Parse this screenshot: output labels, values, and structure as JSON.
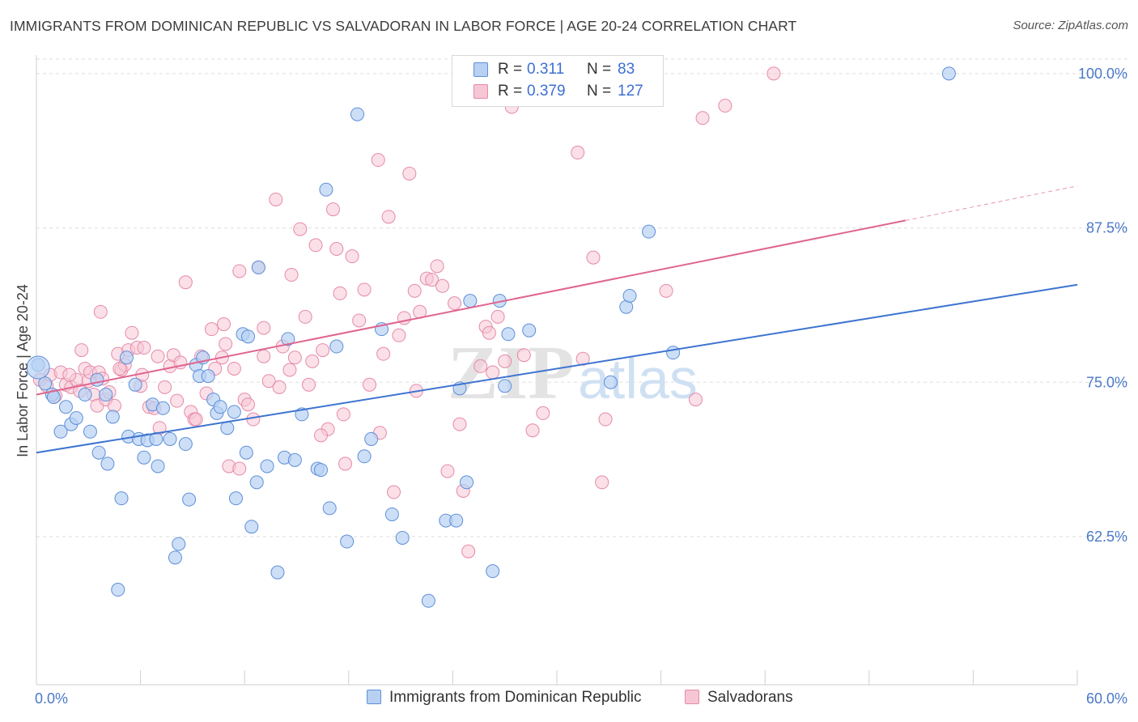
{
  "title": "IMMIGRANTS FROM DOMINICAN REPUBLIC VS SALVADORAN IN LABOR FORCE | AGE 20-24 CORRELATION CHART",
  "source": "Source: ZipAtlas.com",
  "watermark": "ZIPatlas",
  "legend": {
    "rows": [
      {
        "r_label": "R =",
        "r_value": "0.311",
        "n_label": "N =",
        "n_value": "83"
      },
      {
        "r_label": "R =",
        "r_value": "0.379",
        "n_label": "N =",
        "n_value": "127"
      }
    ]
  },
  "bottom_legend": [
    "Immigrants from Dominican Republic",
    "Salvadorans"
  ],
  "colors": {
    "blue_fill": "#b8d1f3",
    "blue_stroke": "#5d8fd8",
    "blue_line": "#3d74d0",
    "pink_fill": "#f7c6d5",
    "pink_stroke": "#e58aa8",
    "pink_line": "#e0658f",
    "grid": "#dddddd",
    "tick_text": "#4a78c8"
  },
  "chart_data": {
    "type": "scatter",
    "title": "IMMIGRANTS FROM DOMINICAN REPUBLIC VS SALVADORAN IN LABOR FORCE | AGE 20-24 CORRELATION CHART",
    "xlabel": "",
    "ylabel": "In Labor Force | Age 20-24",
    "xlim": [
      0,
      60
    ],
    "ylim": [
      50.5,
      101.5
    ],
    "x_tick_labels": [
      "0.0%",
      "60.0%"
    ],
    "y_ticks": [
      62.5,
      75.0,
      87.5,
      100.0
    ],
    "y_tick_labels": [
      "62.5%",
      "75.0%",
      "87.5%",
      "100.0%"
    ],
    "grid": "horizontal dashed",
    "legend_position": "top-center",
    "series": [
      {
        "name": "Immigrants from Dominican Republic",
        "R": 0.311,
        "N": 83,
        "trend": {
          "x": [
            0,
            60
          ],
          "y": [
            69.3,
            82.9
          ]
        },
        "points": [
          [
            0.1,
            76.4
          ],
          [
            0.5,
            74.9
          ],
          [
            0.9,
            74.0
          ],
          [
            1.4,
            71.0
          ],
          [
            1.7,
            73.0
          ],
          [
            2.0,
            71.6
          ],
          [
            2.3,
            72.1
          ],
          [
            2.8,
            74.0
          ],
          [
            3.1,
            71.0
          ],
          [
            3.5,
            75.2
          ],
          [
            3.6,
            69.3
          ],
          [
            4.0,
            74.0
          ],
          [
            4.1,
            68.4
          ],
          [
            4.4,
            72.2
          ],
          [
            4.7,
            58.2
          ],
          [
            4.9,
            65.6
          ],
          [
            5.2,
            77.0
          ],
          [
            5.3,
            70.6
          ],
          [
            5.7,
            74.8
          ],
          [
            5.9,
            70.4
          ],
          [
            6.2,
            68.9
          ],
          [
            6.4,
            70.3
          ],
          [
            6.7,
            73.2
          ],
          [
            7.0,
            68.2
          ],
          [
            7.3,
            72.9
          ],
          [
            7.7,
            70.4
          ],
          [
            8.0,
            60.8
          ],
          [
            8.2,
            61.9
          ],
          [
            8.6,
            70.0
          ],
          [
            8.8,
            65.5
          ],
          [
            9.2,
            76.4
          ],
          [
            9.4,
            75.5
          ],
          [
            9.6,
            77.0
          ],
          [
            9.9,
            75.5
          ],
          [
            10.2,
            73.6
          ],
          [
            10.4,
            72.5
          ],
          [
            10.6,
            73.0
          ],
          [
            11.0,
            71.3
          ],
          [
            11.4,
            72.6
          ],
          [
            11.5,
            65.6
          ],
          [
            11.9,
            78.9
          ],
          [
            12.1,
            69.3
          ],
          [
            12.4,
            63.3
          ],
          [
            12.7,
            66.9
          ],
          [
            12.8,
            84.3
          ],
          [
            13.3,
            68.2
          ],
          [
            13.9,
            59.6
          ],
          [
            14.3,
            68.9
          ],
          [
            14.5,
            78.5
          ],
          [
            14.9,
            68.7
          ],
          [
            15.3,
            72.4
          ],
          [
            16.2,
            68.0
          ],
          [
            16.7,
            90.6
          ],
          [
            16.9,
            64.8
          ],
          [
            17.3,
            77.9
          ],
          [
            17.9,
            62.1
          ],
          [
            18.5,
            96.7
          ],
          [
            18.9,
            69.0
          ],
          [
            19.3,
            70.4
          ],
          [
            19.9,
            79.3
          ],
          [
            20.5,
            64.3
          ],
          [
            21.1,
            62.4
          ],
          [
            22.6,
            57.3
          ],
          [
            23.6,
            63.8
          ],
          [
            24.2,
            63.8
          ],
          [
            24.4,
            74.5
          ],
          [
            24.8,
            66.9
          ],
          [
            25.0,
            81.6
          ],
          [
            26.3,
            59.7
          ],
          [
            26.7,
            81.6
          ],
          [
            27.0,
            74.7
          ],
          [
            27.2,
            78.9
          ],
          [
            28.4,
            79.2
          ],
          [
            33.1,
            75.0
          ],
          [
            34.0,
            81.1
          ],
          [
            34.2,
            82.0
          ],
          [
            35.3,
            87.2
          ],
          [
            36.7,
            77.4
          ],
          [
            52.6,
            100.0
          ],
          [
            1.0,
            73.8
          ],
          [
            6.9,
            70.4
          ],
          [
            16.4,
            67.9
          ],
          [
            12.2,
            78.7
          ]
        ]
      },
      {
        "name": "Salvadorans",
        "R": 0.379,
        "N": 127,
        "trend": {
          "x": [
            0,
            50.1
          ],
          "y": [
            74.0,
            88.1
          ]
        },
        "trend_dashed": {
          "x": [
            50.1,
            60
          ],
          "y": [
            88.1,
            90.9
          ]
        },
        "points": [
          [
            0.2,
            75.2
          ],
          [
            0.6,
            74.7
          ],
          [
            0.8,
            75.6
          ],
          [
            1.1,
            73.9
          ],
          [
            1.4,
            75.8
          ],
          [
            1.7,
            74.8
          ],
          [
            2.0,
            74.6
          ],
          [
            2.3,
            75.2
          ],
          [
            2.5,
            74.3
          ],
          [
            2.8,
            76.1
          ],
          [
            3.0,
            75.1
          ],
          [
            3.1,
            75.8
          ],
          [
            3.3,
            74.0
          ],
          [
            3.5,
            73.1
          ],
          [
            3.6,
            75.8
          ],
          [
            3.8,
            75.3
          ],
          [
            4.0,
            73.6
          ],
          [
            4.2,
            74.2
          ],
          [
            4.5,
            73.1
          ],
          [
            4.7,
            77.3
          ],
          [
            4.9,
            76.0
          ],
          [
            5.1,
            76.4
          ],
          [
            5.3,
            77.6
          ],
          [
            5.5,
            79.0
          ],
          [
            5.8,
            77.8
          ],
          [
            6.0,
            74.7
          ],
          [
            6.2,
            77.8
          ],
          [
            6.5,
            73.0
          ],
          [
            6.8,
            72.9
          ],
          [
            7.0,
            77.1
          ],
          [
            7.1,
            71.3
          ],
          [
            7.4,
            74.6
          ],
          [
            7.7,
            76.3
          ],
          [
            7.9,
            77.2
          ],
          [
            8.1,
            73.5
          ],
          [
            8.3,
            76.6
          ],
          [
            8.6,
            83.1
          ],
          [
            8.9,
            72.6
          ],
          [
            9.1,
            72.0
          ],
          [
            9.5,
            77.1
          ],
          [
            9.8,
            74.1
          ],
          [
            10.1,
            79.3
          ],
          [
            10.3,
            76.1
          ],
          [
            10.7,
            77.0
          ],
          [
            10.9,
            78.1
          ],
          [
            11.1,
            68.2
          ],
          [
            11.4,
            76.1
          ],
          [
            11.7,
            68.0
          ],
          [
            12.0,
            73.6
          ],
          [
            12.2,
            73.2
          ],
          [
            12.5,
            72.0
          ],
          [
            12.8,
            84.3
          ],
          [
            13.1,
            77.1
          ],
          [
            13.4,
            75.1
          ],
          [
            13.8,
            89.8
          ],
          [
            14.0,
            74.6
          ],
          [
            14.2,
            77.9
          ],
          [
            14.6,
            76.0
          ],
          [
            14.9,
            77.0
          ],
          [
            15.2,
            87.4
          ],
          [
            15.5,
            80.3
          ],
          [
            15.9,
            76.7
          ],
          [
            16.1,
            86.1
          ],
          [
            16.5,
            77.6
          ],
          [
            16.8,
            71.2
          ],
          [
            17.1,
            89.0
          ],
          [
            17.3,
            85.8
          ],
          [
            17.5,
            82.2
          ],
          [
            17.8,
            68.4
          ],
          [
            18.2,
            85.2
          ],
          [
            18.6,
            80.0
          ],
          [
            18.9,
            82.5
          ],
          [
            19.2,
            74.8
          ],
          [
            19.7,
            93.0
          ],
          [
            20.0,
            77.3
          ],
          [
            20.3,
            88.4
          ],
          [
            20.6,
            66.1
          ],
          [
            20.9,
            78.8
          ],
          [
            21.2,
            80.2
          ],
          [
            21.5,
            91.9
          ],
          [
            21.8,
            82.4
          ],
          [
            22.1,
            80.7
          ],
          [
            22.5,
            83.4
          ],
          [
            22.8,
            83.3
          ],
          [
            23.1,
            84.4
          ],
          [
            23.4,
            82.8
          ],
          [
            23.7,
            67.8
          ],
          [
            24.1,
            81.4
          ],
          [
            24.4,
            71.6
          ],
          [
            24.6,
            66.2
          ],
          [
            24.9,
            61.3
          ],
          [
            25.5,
            100.0
          ],
          [
            25.6,
            76.3
          ],
          [
            25.9,
            79.5
          ],
          [
            26.1,
            79.0
          ],
          [
            26.3,
            75.8
          ],
          [
            26.6,
            80.3
          ],
          [
            27.0,
            76.7
          ],
          [
            27.4,
            97.3
          ],
          [
            28.1,
            77.2
          ],
          [
            28.6,
            71.1
          ],
          [
            29.2,
            72.5
          ],
          [
            31.2,
            93.6
          ],
          [
            31.5,
            76.9
          ],
          [
            32.1,
            85.1
          ],
          [
            32.6,
            66.9
          ],
          [
            32.8,
            72.0
          ],
          [
            36.3,
            82.4
          ],
          [
            38.0,
            73.6
          ],
          [
            38.4,
            96.4
          ],
          [
            39.7,
            97.4
          ],
          [
            42.5,
            100.0
          ],
          [
            4.8,
            76.1
          ],
          [
            9.2,
            72.0
          ],
          [
            13.1,
            79.4
          ],
          [
            16.4,
            70.7
          ],
          [
            19.8,
            70.9
          ],
          [
            14.7,
            83.7
          ],
          [
            11.7,
            84.0
          ],
          [
            6.1,
            75.6
          ],
          [
            1.9,
            75.6
          ],
          [
            3.7,
            80.7
          ],
          [
            17.7,
            72.4
          ],
          [
            10.8,
            79.7
          ],
          [
            21.9,
            74.3
          ],
          [
            2.6,
            77.6
          ],
          [
            15.7,
            74.8
          ]
        ]
      }
    ]
  }
}
